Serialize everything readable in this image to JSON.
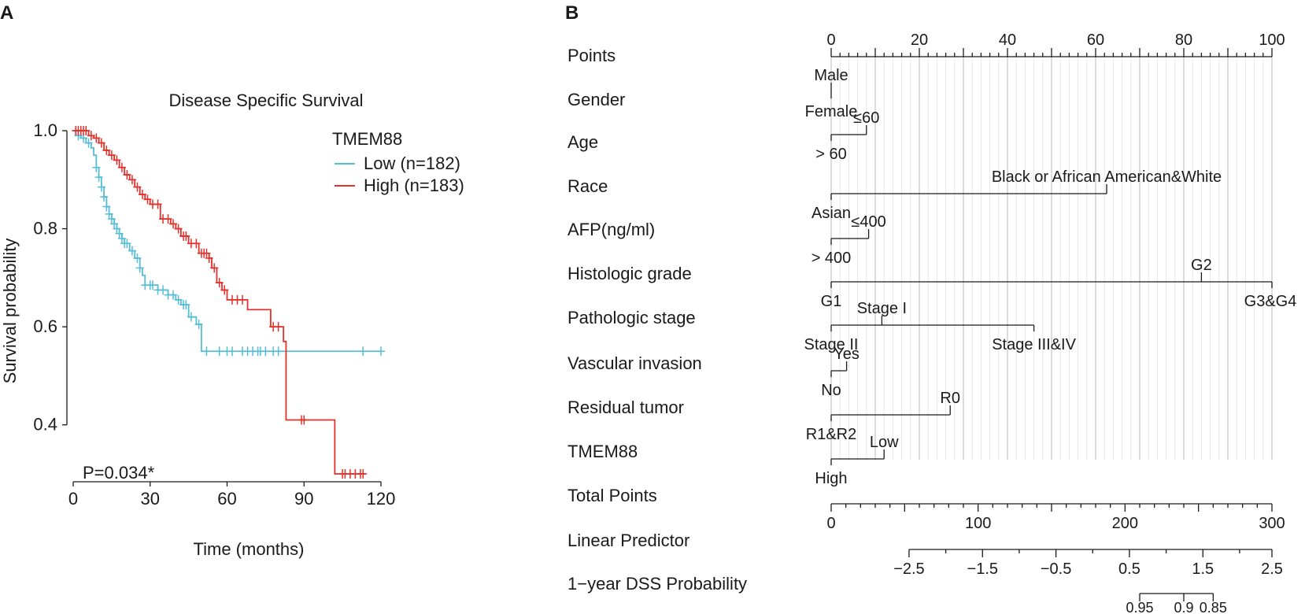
{
  "panels": {
    "a_label": "A",
    "b_label": "B"
  },
  "chart_data": [
    {
      "type": "line",
      "subtype": "kaplan-meier",
      "title": "Disease Specific Survival",
      "xlabel": "Time (months)",
      "ylabel": "Survival probability",
      "xlim": [
        0,
        120
      ],
      "ylim": [
        0.3,
        1.0
      ],
      "xticks": [
        "0",
        "30",
        "60",
        "90",
        "120"
      ],
      "yticks": [
        "0.4",
        "0.6",
        "0.8",
        "1.0"
      ],
      "legend_title": "TMEM88",
      "legend_position": "top-right",
      "annotation": "P=0.034*",
      "series": [
        {
          "name": "Low (n=182)",
          "color": "#56bdd8",
          "steps": [
            [
              0,
              1.0
            ],
            [
              1,
              0.99
            ],
            [
              3,
              0.985
            ],
            [
              5,
              0.975
            ],
            [
              7,
              0.965
            ],
            [
              8,
              0.95
            ],
            [
              9,
              0.925
            ],
            [
              10,
              0.905
            ],
            [
              11,
              0.885
            ],
            [
              12,
              0.865
            ],
            [
              13,
              0.845
            ],
            [
              14,
              0.83
            ],
            [
              15,
              0.82
            ],
            [
              16,
              0.81
            ],
            [
              17,
              0.8
            ],
            [
              18,
              0.79
            ],
            [
              19,
              0.78
            ],
            [
              20,
              0.77
            ],
            [
              22,
              0.755
            ],
            [
              24,
              0.74
            ],
            [
              26,
              0.72
            ],
            [
              27,
              0.705
            ],
            [
              28,
              0.685
            ],
            [
              33,
              0.675
            ],
            [
              37,
              0.665
            ],
            [
              40,
              0.655
            ],
            [
              42,
              0.645
            ],
            [
              45,
              0.62
            ],
            [
              48,
              0.605
            ],
            [
              50,
              0.55
            ],
            [
              120,
              0.55
            ]
          ],
          "censor": [
            2,
            4,
            6,
            9,
            10,
            11,
            12,
            13,
            14,
            15,
            16,
            17,
            18,
            19,
            20,
            21,
            23,
            25,
            26,
            28,
            30,
            31,
            33,
            35,
            37,
            39,
            41,
            43,
            44,
            46,
            49,
            52,
            57,
            60,
            62,
            66,
            68,
            70,
            72,
            73,
            75,
            78,
            80,
            113,
            120
          ]
        },
        {
          "name": "High (n=183)",
          "color": "#e2312a",
          "steps": [
            [
              0,
              1.0
            ],
            [
              6,
              0.99
            ],
            [
              8,
              0.985
            ],
            [
              10,
              0.975
            ],
            [
              12,
              0.96
            ],
            [
              14,
              0.95
            ],
            [
              16,
              0.94
            ],
            [
              18,
              0.925
            ],
            [
              20,
              0.91
            ],
            [
              22,
              0.9
            ],
            [
              24,
              0.885
            ],
            [
              26,
              0.87
            ],
            [
              28,
              0.86
            ],
            [
              30,
              0.85
            ],
            [
              34,
              0.82
            ],
            [
              38,
              0.81
            ],
            [
              40,
              0.8
            ],
            [
              42,
              0.785
            ],
            [
              45,
              0.77
            ],
            [
              49,
              0.75
            ],
            [
              53,
              0.74
            ],
            [
              54,
              0.72
            ],
            [
              56,
              0.69
            ],
            [
              58,
              0.675
            ],
            [
              60,
              0.655
            ],
            [
              68,
              0.635
            ],
            [
              77,
              0.6
            ],
            [
              81,
              0.6
            ],
            [
              82,
              0.57
            ],
            [
              83,
              0.41
            ],
            [
              102,
              0.3
            ],
            [
              114,
              0.3
            ]
          ],
          "censor": [
            1,
            2,
            3,
            4,
            5,
            7,
            9,
            11,
            13,
            15,
            17,
            19,
            21,
            23,
            25,
            27,
            29,
            31,
            33,
            35,
            37,
            39,
            41,
            43,
            44,
            46,
            48,
            50,
            51,
            52,
            53,
            55,
            57,
            59,
            62,
            64,
            66,
            78,
            80,
            89,
            90,
            105,
            106,
            108,
            110,
            112,
            113
          ]
        }
      ]
    },
    {
      "type": "nomogram",
      "points_axis": {
        "label": "Points",
        "range": [
          0,
          100
        ],
        "tick_labels": [
          "0",
          "20",
          "40",
          "60",
          "80",
          "100"
        ]
      },
      "variables": [
        {
          "name": "Gender",
          "levels": [
            {
              "label": "Male",
              "points": 0,
              "side": "top"
            },
            {
              "label": "Female",
              "points": 0,
              "side": "bottom"
            }
          ]
        },
        {
          "name": "Age",
          "levels": [
            {
              "label": "≤60",
              "points": 8,
              "side": "top"
            },
            {
              "label": "> 60",
              "points": 0,
              "side": "bottom"
            }
          ]
        },
        {
          "name": "Race",
          "levels": [
            {
              "label": "Black or African American&White",
              "points": 62.5,
              "side": "top"
            },
            {
              "label": "Asian",
              "points": 0,
              "side": "bottom"
            }
          ]
        },
        {
          "name": "AFP(ng/ml)",
          "levels": [
            {
              "label": "≤400",
              "points": 8.5,
              "side": "top"
            },
            {
              "label": "> 400",
              "points": 0,
              "side": "bottom"
            }
          ]
        },
        {
          "name": "Histologic grade",
          "levels": [
            {
              "label": "G2",
              "points": 84,
              "side": "top"
            },
            {
              "label": "G1",
              "points": 0,
              "side": "bottom"
            },
            {
              "label": "G3&G4",
              "points": 100,
              "side": "bottom"
            }
          ]
        },
        {
          "name": "Pathologic stage",
          "levels": [
            {
              "label": "Stage I",
              "points": 11.5,
              "side": "top"
            },
            {
              "label": "Stage II",
              "points": 0,
              "side": "bottom"
            },
            {
              "label": "Stage III&IV",
              "points": 46,
              "side": "bottom"
            }
          ]
        },
        {
          "name": "Vascular invasion",
          "levels": [
            {
              "label": "Yes",
              "points": 3.5,
              "side": "top"
            },
            {
              "label": "No",
              "points": 0,
              "side": "bottom"
            }
          ]
        },
        {
          "name": "Residual tumor",
          "levels": [
            {
              "label": "R0",
              "points": 27,
              "side": "top"
            },
            {
              "label": "R1&R2",
              "points": 0,
              "side": "bottom"
            }
          ]
        },
        {
          "name": "TMEM88",
          "levels": [
            {
              "label": "Low",
              "points": 12,
              "side": "top"
            },
            {
              "label": "High",
              "points": 0,
              "side": "bottom"
            }
          ]
        }
      ],
      "total_points": {
        "label": "Total Points",
        "range": [
          0,
          300
        ],
        "tick_labels": [
          "0",
          "100",
          "200",
          "300"
        ]
      },
      "linear_predictor": {
        "label": "Linear Predictor",
        "tick_labels": [
          "−2.5",
          "−1.5",
          "−0.5",
          "0.5",
          "1.5",
          "2.5"
        ],
        "tick_total_points": [
          53,
          103,
          153,
          203,
          253,
          303
        ]
      },
      "probability": {
        "label": "1−year DSS Probability",
        "tick_labels": [
          "0.95",
          "0.9",
          "0.85"
        ],
        "tick_total_points": [
          210,
          240,
          260
        ]
      }
    }
  ]
}
